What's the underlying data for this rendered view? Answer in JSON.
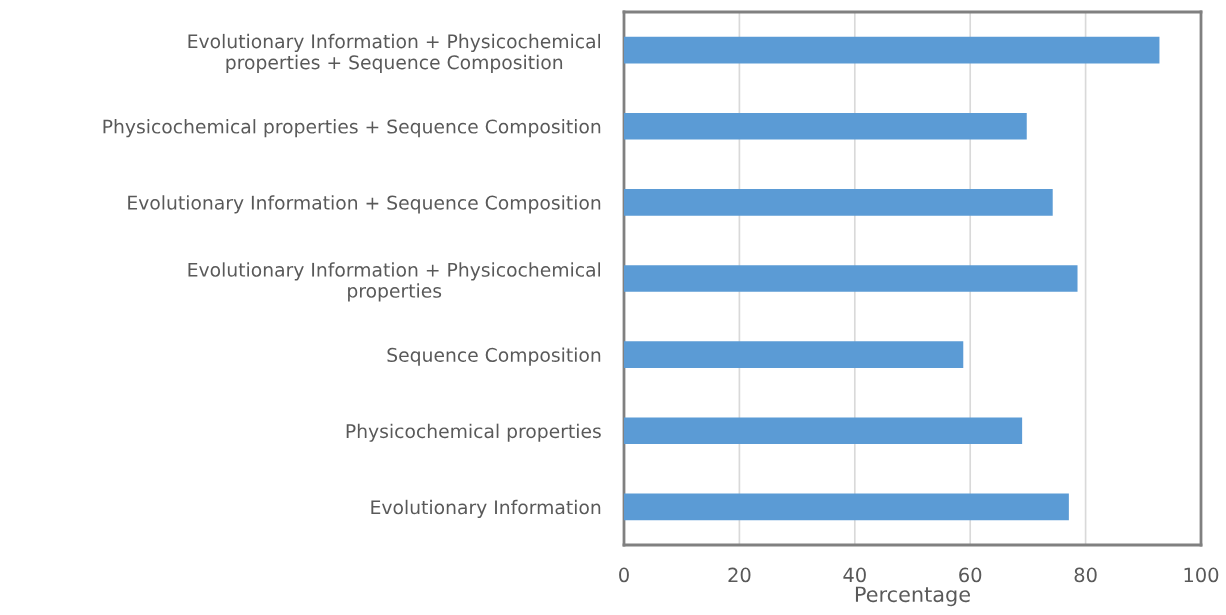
{
  "chart_data": {
    "type": "bar",
    "orientation": "horizontal",
    "xlabel": "Percentage",
    "categories": [
      "Evolutionary Information + Physicochemical\nproperties + Sequence Composition",
      "Physicochemical properties + Sequence Composition",
      "Evolutionary Information + Sequence Composition",
      "Evolutionary Information + Physicochemical\nproperties",
      "Sequence Composition",
      "Physicochemical properties",
      "Evolutionary Information"
    ],
    "values": [
      92.8,
      69.8,
      74.3,
      78.6,
      58.8,
      69.0,
      77.1
    ],
    "color": "#5b9bd5",
    "xlim": [
      0,
      100
    ],
    "xticks": [
      0,
      20,
      40,
      60,
      80,
      100
    ],
    "grid": "x"
  }
}
